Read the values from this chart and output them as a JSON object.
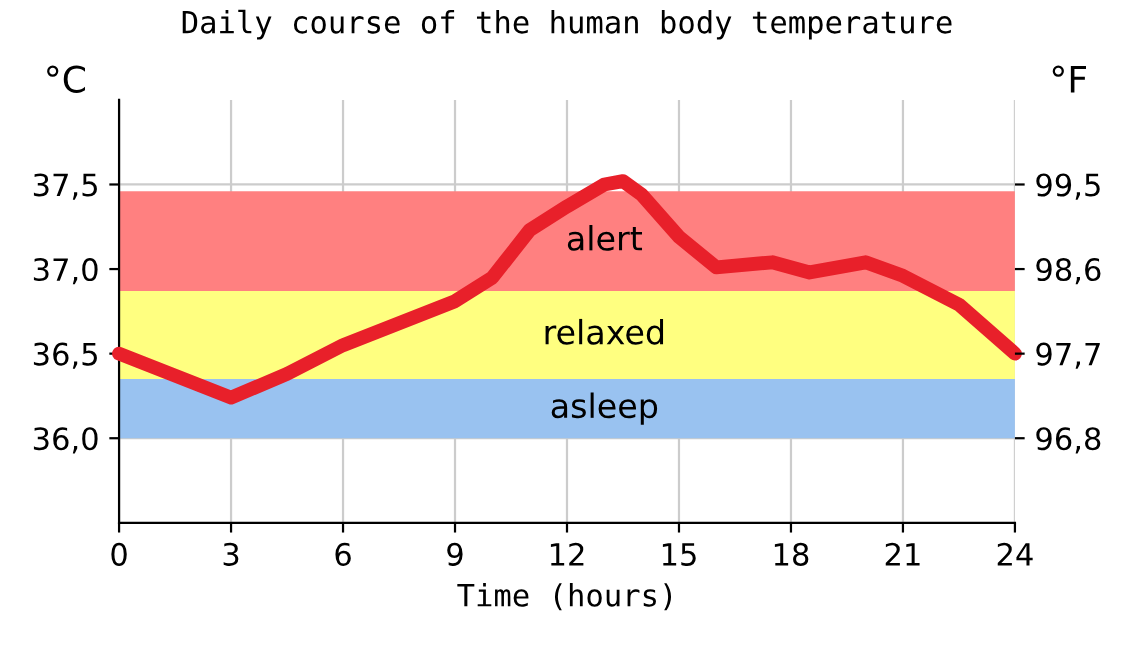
{
  "chart_data": {
    "type": "line",
    "title": "Daily course of the human body temperature",
    "xlabel": "Time (hours)",
    "ylabel": "°C",
    "y2label": "°F",
    "x": [
      0,
      1.5,
      3,
      4.5,
      6,
      9,
      10,
      11,
      12,
      13,
      13.5,
      14,
      15,
      16,
      17.5,
      18.5,
      20,
      21,
      22.5,
      24
    ],
    "series": [
      {
        "color": "#e8202a",
        "values": [
          36.5,
          36.37,
          36.24,
          36.38,
          36.55,
          36.81,
          36.95,
          37.23,
          37.37,
          37.5,
          37.52,
          37.44,
          37.19,
          37.01,
          37.04,
          36.98,
          37.04,
          36.96,
          36.79,
          36.5
        ]
      }
    ],
    "xlim": [
      0,
      24
    ],
    "xticks": [
      0,
      3,
      6,
      9,
      12,
      15,
      18,
      21,
      24
    ],
    "ylim": [
      35.5,
      38.0
    ],
    "yticks": [
      {
        "value": 36.0,
        "label": "36,0"
      },
      {
        "value": 36.5,
        "label": "36,5"
      },
      {
        "value": 37.0,
        "label": "37,0"
      },
      {
        "value": 37.5,
        "label": "37,5"
      }
    ],
    "y2lim": [
      95.9,
      100.4
    ],
    "y2ticks": [
      {
        "value": 96.8,
        "label": "96,8"
      },
      {
        "value": 97.7,
        "label": "97,7"
      },
      {
        "value": 98.6,
        "label": "98,6"
      },
      {
        "value": 99.5,
        "label": "99,5"
      }
    ],
    "bands": [
      {
        "axis": "y",
        "from": 36.0,
        "to": 36.35,
        "label": "asleep",
        "color": "#99c2f0"
      },
      {
        "axis": "y",
        "from": 36.35,
        "to": 36.87,
        "label": "relaxed",
        "color": "#ffff80"
      },
      {
        "axis": "y",
        "from": 36.87,
        "to": 37.46,
        "label": "alert",
        "color": "#ff8080"
      }
    ],
    "grid": true,
    "marker": "none",
    "line_style": "solid"
  }
}
